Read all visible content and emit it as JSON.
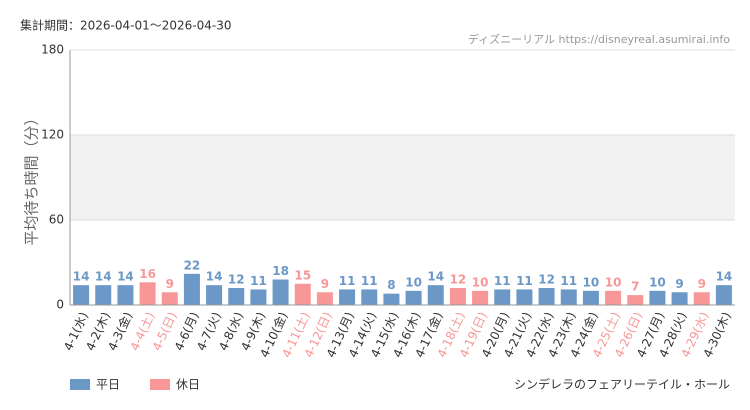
{
  "chart_data": {
    "type": "bar",
    "period": "集計期間：2026-04-01～2026-04-30",
    "source": "ディズニーリアル https://disneyreal.asumirai.info",
    "y_label": "平均待ち時間（分）",
    "subtitle": "シンデレラのフェアリーテイル・ホール",
    "categories": [
      "4-1(水)",
      "4-2(木)",
      "4-3(金)",
      "4-4(土)",
      "4-5(日)",
      "4-6(月)",
      "4-7(火)",
      "4-8(水)",
      "4-9(木)",
      "4-10(金)",
      "4-11(土)",
      "4-12(日)",
      "4-13(月)",
      "4-14(火)",
      "4-15(水)",
      "4-16(木)",
      "4-17(金)",
      "4-18(土)",
      "4-19(日)",
      "4-20(月)",
      "4-21(火)",
      "4-22(水)",
      "4-23(木)",
      "4-24(金)",
      "4-25(土)",
      "4-26(日)",
      "4-27(月)",
      "4-28(火)",
      "4-29(水)",
      "4-30(木)"
    ],
    "series": [
      {
        "name": "平日",
        "color": "#6b98c6",
        "values": [
          14,
          14,
          14,
          null,
          null,
          22,
          14,
          12,
          11,
          18,
          null,
          null,
          11,
          11,
          8,
          10,
          14,
          null,
          null,
          11,
          11,
          12,
          11,
          10,
          null,
          null,
          10,
          9,
          null,
          14
        ]
      },
      {
        "name": "休日",
        "color": "#f79797",
        "values": [
          null,
          null,
          null,
          16,
          9,
          null,
          null,
          null,
          null,
          null,
          15,
          9,
          null,
          null,
          null,
          null,
          null,
          12,
          10,
          null,
          null,
          null,
          null,
          null,
          10,
          7,
          null,
          null,
          9,
          null
        ]
      }
    ],
    "ylim": [
      0,
      180
    ],
    "yticks": [
      0,
      60,
      120,
      180
    ],
    "grid": true
  }
}
